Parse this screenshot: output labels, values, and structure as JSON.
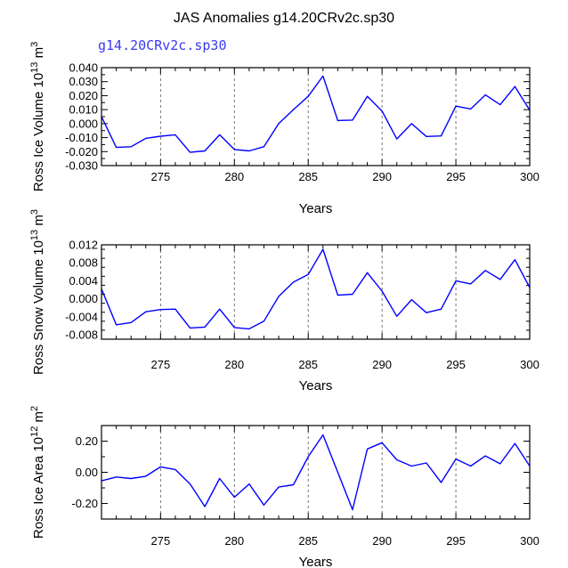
{
  "title": "JAS Anomalies g14.20CRv2c.sp30",
  "legend": "g14.20CRv2c.sp30",
  "colors": {
    "series": "#0000ff",
    "legend": "#3a3af0"
  },
  "chart_data": [
    {
      "type": "line",
      "xlabel": "Years",
      "ylabel": "Ross Ice Volume 10",
      "ylabel_exp": "13",
      "ylabel_unit": " m",
      "ylabel_unit_exp": "3",
      "xlim": [
        271,
        300
      ],
      "ylim": [
        -0.03,
        0.04
      ],
      "x_ticks": [
        "275",
        "280",
        "285",
        "290",
        "295",
        "300"
      ],
      "y_ticks": [
        "0.040",
        "0.030",
        "0.020",
        "0.010",
        "0.000",
        "-0.010",
        "-0.020",
        "-0.030"
      ],
      "y_tick_values": [
        0.04,
        0.03,
        0.02,
        0.01,
        0.0,
        -0.01,
        -0.02,
        -0.03
      ],
      "grid": "vertical dashed at labeled x ticks",
      "series": [
        {
          "x": [
            271,
            272,
            273,
            274,
            275,
            276,
            277,
            278,
            279,
            280,
            281,
            282,
            283,
            284,
            285,
            286,
            287,
            288,
            289,
            290,
            291,
            292,
            293,
            294,
            295,
            296,
            297,
            298,
            299,
            300
          ],
          "values": [
            0.005,
            -0.017,
            -0.0165,
            -0.0105,
            -0.009,
            -0.008,
            -0.0205,
            -0.0195,
            -0.008,
            -0.0185,
            -0.0195,
            -0.0165,
            0.0,
            0.01,
            0.0195,
            0.034,
            0.0022,
            0.0025,
            0.0195,
            0.009,
            -0.011,
            0.0,
            -0.0092,
            -0.0088,
            0.0125,
            0.0105,
            0.0205,
            0.0135,
            0.0265,
            0.0095
          ]
        }
      ]
    },
    {
      "type": "line",
      "xlabel": "Years",
      "ylabel": "Ross Snow Volume 10",
      "ylabel_exp": "13",
      "ylabel_unit": " m",
      "ylabel_unit_exp": "3",
      "xlim": [
        271,
        300
      ],
      "ylim": [
        -0.009,
        0.012
      ],
      "x_ticks": [
        "275",
        "280",
        "285",
        "290",
        "295",
        "300"
      ],
      "y_ticks": [
        "0.012",
        "0.008",
        "0.004",
        "0.000",
        "-0.004",
        "-0.008"
      ],
      "y_tick_values": [
        0.012,
        0.008,
        0.004,
        0.0,
        -0.004,
        -0.008
      ],
      "grid": "vertical dashed at labeled x ticks",
      "series": [
        {
          "x": [
            271,
            272,
            273,
            274,
            275,
            276,
            277,
            278,
            279,
            280,
            281,
            282,
            283,
            284,
            285,
            286,
            287,
            288,
            289,
            290,
            291,
            292,
            293,
            294,
            295,
            296,
            297,
            298,
            299,
            300
          ],
          "values": [
            0.0022,
            -0.0058,
            -0.0053,
            -0.0029,
            -0.0024,
            -0.0023,
            -0.0065,
            -0.0063,
            -0.0023,
            -0.0064,
            -0.0067,
            -0.005,
            0.0005,
            0.0037,
            0.0054,
            0.011,
            0.0008,
            0.001,
            0.0058,
            0.0017,
            -0.0039,
            -0.0002,
            -0.0031,
            -0.0023,
            0.004,
            0.0033,
            0.0063,
            0.0043,
            0.0087,
            0.0025
          ]
        }
      ]
    },
    {
      "type": "line",
      "xlabel": "Years",
      "ylabel": "Ross Ice Area 10",
      "ylabel_exp": "12",
      "ylabel_unit": " m",
      "ylabel_unit_exp": "2",
      "xlim": [
        271,
        300
      ],
      "ylim": [
        -0.3,
        0.3
      ],
      "x_ticks": [
        "275",
        "280",
        "285",
        "290",
        "295",
        "300"
      ],
      "y_ticks": [
        "0.20",
        "0.00",
        "-0.20"
      ],
      "y_tick_values": [
        0.2,
        0.0,
        -0.2
      ],
      "grid": "vertical dashed at labeled x ticks",
      "series": [
        {
          "x": [
            271,
            272,
            273,
            274,
            275,
            276,
            277,
            278,
            279,
            280,
            281,
            282,
            283,
            284,
            285,
            286,
            287,
            288,
            289,
            290,
            291,
            292,
            293,
            294,
            295,
            296,
            297,
            298,
            299,
            300
          ],
          "values": [
            -0.055,
            -0.03,
            -0.04,
            -0.025,
            0.035,
            0.018,
            -0.075,
            -0.22,
            -0.04,
            -0.16,
            -0.075,
            -0.21,
            -0.095,
            -0.08,
            0.1,
            0.24,
            0.0,
            -0.24,
            0.15,
            0.19,
            0.08,
            0.04,
            0.06,
            -0.065,
            0.085,
            0.04,
            0.105,
            0.055,
            0.185,
            0.04
          ]
        }
      ]
    }
  ]
}
